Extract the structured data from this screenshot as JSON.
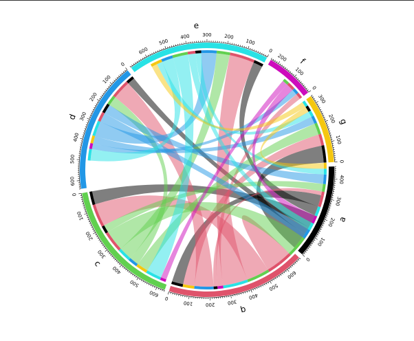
{
  "chart_data": {
    "type": "chord",
    "title": "",
    "gap_degrees": 2,
    "tick_major": 100,
    "tick_minor": 10,
    "sectors": [
      {
        "name": "a",
        "size": 460,
        "color": "#000000"
      },
      {
        "name": "b",
        "size": 680,
        "color": "#DF536B"
      },
      {
        "name": "c",
        "size": 640,
        "color": "#61D04F"
      },
      {
        "name": "d",
        "size": 640,
        "color": "#2297E6"
      },
      {
        "name": "e",
        "size": 690,
        "color": "#28E2E5"
      },
      {
        "name": "f",
        "size": 240,
        "color": "#CD0BBC"
      },
      {
        "name": "g",
        "size": 340,
        "color": "#F5C710"
      }
    ],
    "links": [
      {
        "from": "a",
        "to": "g",
        "value": 90
      },
      {
        "from": "a",
        "to": "d",
        "value": 40
      },
      {
        "from": "a",
        "to": "c",
        "value": 70
      },
      {
        "from": "a",
        "to": "e",
        "value": 50
      },
      {
        "from": "a",
        "to": "b",
        "value": 60
      },
      {
        "from": "b",
        "to": "g",
        "value": 60
      },
      {
        "from": "b",
        "to": "d",
        "value": 100
      },
      {
        "from": "b",
        "to": "a",
        "value": 20
      },
      {
        "from": "b",
        "to": "f",
        "value": 30
      },
      {
        "from": "b",
        "to": "e",
        "value": 130
      },
      {
        "from": "b",
        "to": "c",
        "value": 120
      },
      {
        "from": "b",
        "to": "b",
        "value": 70
      },
      {
        "from": "c",
        "to": "a",
        "value": 40
      },
      {
        "from": "c",
        "to": "b",
        "value": 110
      },
      {
        "from": "c",
        "to": "e",
        "value": 70
      },
      {
        "from": "c",
        "to": "d",
        "value": 50
      },
      {
        "from": "c",
        "to": "g",
        "value": 60
      },
      {
        "from": "d",
        "to": "a",
        "value": 50
      },
      {
        "from": "d",
        "to": "b",
        "value": 50
      },
      {
        "from": "d",
        "to": "e",
        "value": 80
      },
      {
        "from": "d",
        "to": "g",
        "value": 40
      },
      {
        "from": "d",
        "to": "f",
        "value": 30
      },
      {
        "from": "e",
        "to": "a",
        "value": 30
      },
      {
        "from": "e",
        "to": "b",
        "value": 40
      },
      {
        "from": "e",
        "to": "c",
        "value": 80
      },
      {
        "from": "e",
        "to": "d",
        "value": 60
      },
      {
        "from": "e",
        "to": "g",
        "value": 30
      },
      {
        "from": "f",
        "to": "b",
        "value": 40
      },
      {
        "from": "f",
        "to": "c",
        "value": 30
      },
      {
        "from": "g",
        "to": "a",
        "value": 30
      },
      {
        "from": "g",
        "to": "e",
        "value": 30
      }
    ]
  }
}
